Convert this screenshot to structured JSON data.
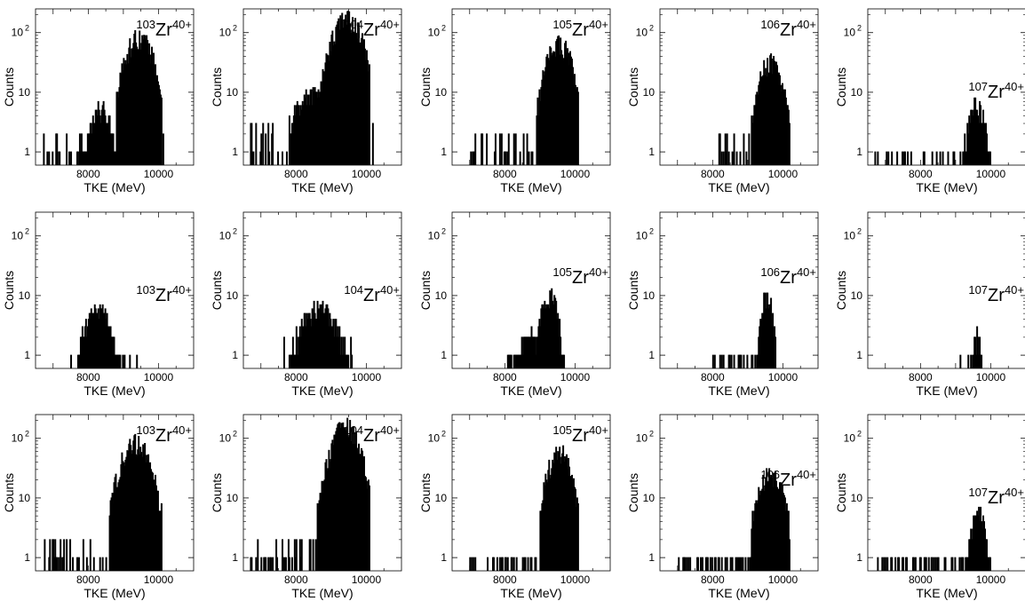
{
  "figure": {
    "xlabel": "TKE (MeV)",
    "ylabel": "Counts",
    "fill_color": "#ffff00",
    "outline_color": "#000000"
  },
  "chart_data": [
    {
      "type": "histogram",
      "isotope": "Zr",
      "mass": "103",
      "charge": "40+",
      "xlabel": "TKE (MeV)",
      "ylabel": "Counts",
      "xticks": [
        8000,
        10000
      ],
      "yticks": [
        "1",
        "10",
        "10 2"
      ],
      "xlim": [
        6500,
        11000
      ],
      "ylim": [
        0.6,
        250
      ],
      "yscale": "log",
      "components": [
        {
          "center": 9450,
          "sigma": 300,
          "amp": 85,
          "range": [
            8800,
            10100
          ]
        },
        {
          "center": 8350,
          "sigma": 250,
          "amp": 5,
          "range": [
            7700,
            8900
          ]
        }
      ],
      "noise": {
        "range": [
          6700,
          10200
        ],
        "max": 2
      },
      "label_pos": "top"
    },
    {
      "type": "histogram",
      "isotope": "Zr",
      "mass": "104",
      "charge": "40+",
      "xlabel": "TKE (MeV)",
      "ylabel": "Counts",
      "xticks": [
        8000,
        10000
      ],
      "yticks": [
        "1",
        "10",
        "10 2"
      ],
      "xlim": [
        6500,
        11000
      ],
      "ylim": [
        0.6,
        250
      ],
      "yscale": "log",
      "components": [
        {
          "center": 9450,
          "sigma": 330,
          "amp": 170,
          "range": [
            8700,
            10100
          ]
        },
        {
          "center": 8600,
          "sigma": 500,
          "amp": 10,
          "range": [
            7800,
            9200
          ]
        }
      ],
      "noise": {
        "range": [
          6700,
          10200
        ],
        "max": 3
      },
      "label_pos": "top"
    },
    {
      "type": "histogram",
      "isotope": "Zr",
      "mass": "105",
      "charge": "40+",
      "xlabel": "TKE (MeV)",
      "ylabel": "Counts",
      "xticks": [
        8000,
        10000
      ],
      "yticks": [
        "1",
        "10",
        "10 2"
      ],
      "xlim": [
        6500,
        11000
      ],
      "ylim": [
        0.6,
        250
      ],
      "yscale": "log",
      "components": [
        {
          "center": 9550,
          "sigma": 280,
          "amp": 65,
          "range": [
            8900,
            10100
          ]
        }
      ],
      "noise": {
        "range": [
          7000,
          9300
        ],
        "max": 2
      },
      "label_pos": "top"
    },
    {
      "type": "histogram",
      "isotope": "Zr",
      "mass": "106",
      "charge": "40+",
      "xlabel": "TKE (MeV)",
      "ylabel": "Counts",
      "xticks": [
        8000,
        10000
      ],
      "yticks": [
        "1",
        "10",
        "10 2"
      ],
      "xlim": [
        6500,
        11000
      ],
      "ylim": [
        0.6,
        250
      ],
      "yscale": "log",
      "components": [
        {
          "center": 9650,
          "sigma": 250,
          "amp": 32,
          "range": [
            9100,
            10200
          ]
        }
      ],
      "noise": {
        "range": [
          8000,
          9200
        ],
        "max": 2
      },
      "label_pos": "top"
    },
    {
      "type": "histogram",
      "isotope": "Zr",
      "mass": "107",
      "charge": "40+",
      "xlabel": "TKE (MeV)",
      "ylabel": "Counts",
      "xticks": [
        8000,
        10000
      ],
      "yticks": [
        "1",
        "10",
        "10 2"
      ],
      "xlim": [
        6500,
        11000
      ],
      "ylim": [
        0.6,
        250
      ],
      "yscale": "log",
      "components": [
        {
          "center": 9600,
          "sigma": 200,
          "amp": 6,
          "range": [
            9200,
            10000
          ]
        }
      ],
      "noise": {
        "range": [
          6700,
          9200
        ],
        "max": 1
      },
      "label_pos": "mid"
    },
    {
      "type": "histogram",
      "isotope": "Zr",
      "mass": "103",
      "charge": "40+",
      "xlabel": "TKE (MeV)",
      "ylabel": "Counts",
      "xticks": [
        8000,
        10000
      ],
      "yticks": [
        "1",
        "10",
        "10 2"
      ],
      "xlim": [
        6500,
        11000
      ],
      "ylim": [
        0.6,
        250
      ],
      "yscale": "log",
      "components": [
        {
          "center": 8250,
          "sigma": 280,
          "amp": 6,
          "range": [
            7700,
            8900
          ]
        }
      ],
      "noise": {
        "range": [
          7500,
          9400
        ],
        "max": 1
      },
      "label_pos": "mid"
    },
    {
      "type": "histogram",
      "isotope": "Zr",
      "mass": "104",
      "charge": "40+",
      "xlabel": "TKE (MeV)",
      "ylabel": "Counts",
      "xticks": [
        8000,
        10000
      ],
      "yticks": [
        "1",
        "10",
        "10 2"
      ],
      "xlim": [
        6500,
        11000
      ],
      "ylim": [
        0.6,
        250
      ],
      "yscale": "log",
      "components": [
        {
          "center": 8650,
          "sigma": 420,
          "amp": 6,
          "range": [
            7800,
            9500
          ]
        }
      ],
      "noise": {
        "range": [
          7600,
          9600
        ],
        "max": 2
      },
      "label_pos": "mid"
    },
    {
      "type": "histogram",
      "isotope": "Zr",
      "mass": "105",
      "charge": "40+",
      "xlabel": "TKE (MeV)",
      "ylabel": "Counts",
      "xticks": [
        8000,
        10000
      ],
      "yticks": [
        "1",
        "10",
        "10 2"
      ],
      "xlim": [
        6500,
        11000
      ],
      "ylim": [
        0.6,
        250
      ],
      "yscale": "log",
      "components": [
        {
          "center": 9300,
          "sigma": 200,
          "amp": 10,
          "range": [
            8900,
            9600
          ]
        },
        {
          "center": 8700,
          "sigma": 300,
          "amp": 2,
          "range": [
            8200,
            9100
          ]
        }
      ],
      "noise": {
        "range": [
          8000,
          9700
        ],
        "max": 1
      },
      "label_pos": "upper"
    },
    {
      "type": "histogram",
      "isotope": "Zr",
      "mass": "106",
      "charge": "40+",
      "xlabel": "TKE (MeV)",
      "ylabel": "Counts",
      "xticks": [
        8000,
        10000
      ],
      "yticks": [
        "1",
        "10",
        "10 2"
      ],
      "xlim": [
        6500,
        11000
      ],
      "ylim": [
        0.6,
        250
      ],
      "yscale": "log",
      "components": [
        {
          "center": 9550,
          "sigma": 130,
          "amp": 10,
          "range": [
            9300,
            9800
          ]
        }
      ],
      "noise": {
        "range": [
          8000,
          9300
        ],
        "max": 1
      },
      "label_pos": "upper"
    },
    {
      "type": "histogram",
      "isotope": "Zr",
      "mass": "107",
      "charge": "40+",
      "xlabel": "TKE (MeV)",
      "ylabel": "Counts",
      "xticks": [
        8000,
        10000
      ],
      "yticks": [
        "1",
        "10",
        "10 2"
      ],
      "xlim": [
        6500,
        11000
      ],
      "ylim": [
        0.6,
        250
      ],
      "yscale": "log",
      "components": [
        {
          "center": 9600,
          "sigma": 100,
          "amp": 2,
          "range": [
            9400,
            9800
          ]
        }
      ],
      "noise": {
        "range": [
          9100,
          9800
        ],
        "max": 1
      },
      "label_pos": "mid"
    },
    {
      "type": "histogram",
      "isotope": "Zr",
      "mass": "103",
      "charge": "40+",
      "xlabel": "TKE (MeV)",
      "ylabel": "Counts",
      "xticks": [
        8000,
        10000
      ],
      "yticks": [
        "1",
        "10",
        "10 2"
      ],
      "xlim": [
        6500,
        11000
      ],
      "ylim": [
        0.6,
        250
      ],
      "yscale": "log",
      "components": [
        {
          "center": 9350,
          "sigma": 320,
          "amp": 85,
          "range": [
            8600,
            10100
          ]
        }
      ],
      "noise": {
        "range": [
          6700,
          9000
        ],
        "max": 2
      },
      "label_pos": "top"
    },
    {
      "type": "histogram",
      "isotope": "Zr",
      "mass": "104",
      "charge": "40+",
      "xlabel": "TKE (MeV)",
      "ylabel": "Counts",
      "xticks": [
        8000,
        10000
      ],
      "yticks": [
        "1",
        "10",
        "10 2"
      ],
      "xlim": [
        6500,
        11000
      ],
      "ylim": [
        0.6,
        250
      ],
      "yscale": "log",
      "components": [
        {
          "center": 9400,
          "sigma": 310,
          "amp": 160,
          "range": [
            8600,
            10100
          ]
        }
      ],
      "noise": {
        "range": [
          6700,
          9000
        ],
        "max": 2
      },
      "label_pos": "top"
    },
    {
      "type": "histogram",
      "isotope": "Zr",
      "mass": "105",
      "charge": "40+",
      "xlabel": "TKE (MeV)",
      "ylabel": "Counts",
      "xticks": [
        8000,
        10000
      ],
      "yticks": [
        "1",
        "10",
        "10 2"
      ],
      "xlim": [
        6500,
        11000
      ],
      "ylim": [
        0.6,
        250
      ],
      "yscale": "log",
      "components": [
        {
          "center": 9550,
          "sigma": 250,
          "amp": 60,
          "range": [
            9000,
            10100
          ]
        }
      ],
      "noise": {
        "range": [
          6900,
          9100
        ],
        "max": 1
      },
      "label_pos": "top"
    },
    {
      "type": "histogram",
      "isotope": "Zr",
      "mass": "106",
      "charge": "40+",
      "xlabel": "TKE (MeV)",
      "ylabel": "Counts",
      "xticks": [
        8000,
        10000
      ],
      "yticks": [
        "1",
        "10",
        "10 2"
      ],
      "xlim": [
        6500,
        11000
      ],
      "ylim": [
        0.6,
        250
      ],
      "yscale": "log",
      "components": [
        {
          "center": 9650,
          "sigma": 270,
          "amp": 25,
          "range": [
            9100,
            10200
          ]
        }
      ],
      "noise": {
        "range": [
          7000,
          9200
        ],
        "max": 1
      },
      "label_pos": "upper"
    },
    {
      "type": "histogram",
      "isotope": "Zr",
      "mass": "107",
      "charge": "40+",
      "xlabel": "TKE (MeV)",
      "ylabel": "Counts",
      "xticks": [
        8000,
        10000
      ],
      "yticks": [
        "1",
        "10",
        "10 2"
      ],
      "xlim": [
        6500,
        11000
      ],
      "ylim": [
        0.6,
        250
      ],
      "yscale": "log",
      "components": [
        {
          "center": 9650,
          "sigma": 180,
          "amp": 5,
          "range": [
            9300,
            10000
          ]
        }
      ],
      "noise": {
        "range": [
          6700,
          9300
        ],
        "max": 1
      },
      "label_pos": "mid"
    }
  ]
}
